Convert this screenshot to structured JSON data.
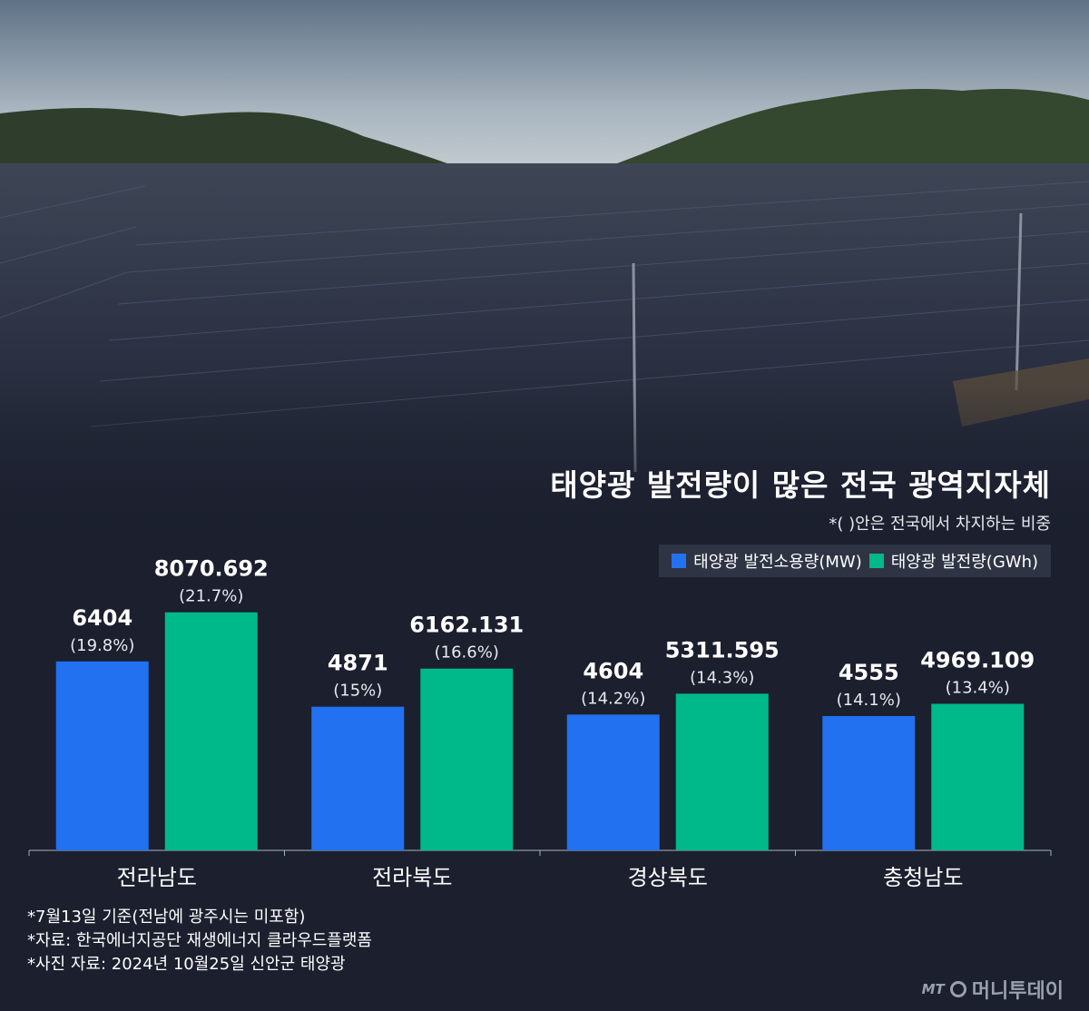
{
  "title": "태양광 발전량이 많은 전국 광역지자체",
  "subnote": "*(  )안은 전국에서 차지하는 비중",
  "colors": {
    "background": "#1b1f2e",
    "capacity": "#2271f0",
    "generation": "#00b98a"
  },
  "chart_data": {
    "type": "bar",
    "categories": [
      "전라남도",
      "전라북도",
      "경상북도",
      "충청남도"
    ],
    "series": [
      {
        "name": "태양광 발전소용량(MW)",
        "values": [
          6404,
          4871,
          4604,
          4555
        ],
        "value_labels": [
          "6404",
          "4871",
          "4604",
          "4555"
        ],
        "share_labels": [
          "(19.8%)",
          "(15%)",
          "(14.2%)",
          "(14.1%)"
        ],
        "color": "#2271f0"
      },
      {
        "name": "태양광 발전량(GWh)",
        "values": [
          8070.692,
          6162.131,
          5311.595,
          4969.109
        ],
        "value_labels": [
          "8070.692",
          "6162.131",
          "5311.595",
          "4969.109"
        ],
        "share_labels": [
          "(21.7%)",
          "(16.6%)",
          "(14.3%)",
          "(13.4%)"
        ],
        "color": "#00b98a"
      }
    ],
    "ylim": [
      0,
      12000
    ],
    "grid": false,
    "legend": "top-right"
  },
  "footnotes": [
    "*7월13일 기준(전남에 광주시는 미포함)",
    "*자료: 한국에너지공단 재생에너지 클라우드플랫폼",
    "*사진 자료: 2024년 10월25일 신안군 태양광"
  ],
  "logo": {
    "mark": "MT",
    "name": "머니투데이"
  }
}
